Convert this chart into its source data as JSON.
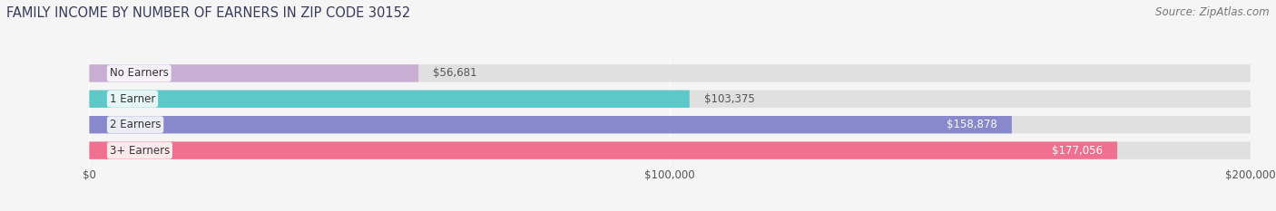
{
  "title": "FAMILY INCOME BY NUMBER OF EARNERS IN ZIP CODE 30152",
  "source": "Source: ZipAtlas.com",
  "categories": [
    "No Earners",
    "1 Earner",
    "2 Earners",
    "3+ Earners"
  ],
  "values": [
    56681,
    103375,
    158878,
    177056
  ],
  "labels": [
    "$56,681",
    "$103,375",
    "$158,878",
    "$177,056"
  ],
  "bar_colors": [
    "#c9aed4",
    "#5ec8c8",
    "#8888cc",
    "#f07090"
  ],
  "bar_bg_color": "#e0e0e0",
  "label_inside_colors": [
    "#555555",
    "#555555",
    "#ffffff",
    "#ffffff"
  ],
  "xlim": [
    0,
    200000
  ],
  "xticks": [
    0,
    100000,
    200000
  ],
  "xtick_labels": [
    "$0",
    "$100,000",
    "$200,000"
  ],
  "background_color": "#f5f5f5",
  "title_fontsize": 10.5,
  "source_fontsize": 8.5,
  "bar_label_fontsize": 8.5,
  "category_fontsize": 8.5,
  "tick_fontsize": 8.5,
  "label_threshold": 130000
}
